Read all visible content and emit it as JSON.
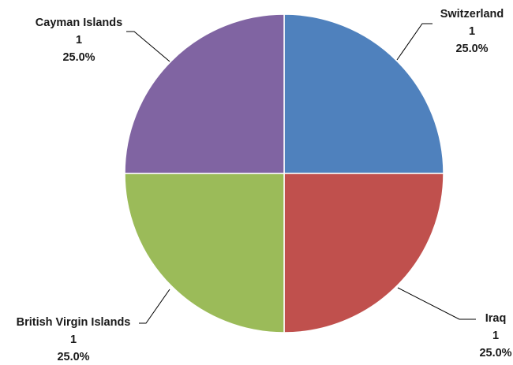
{
  "chart_data": {
    "type": "pie",
    "title": "",
    "slices": [
      {
        "name": "Switzerland",
        "value": 1,
        "percent": "25.0%",
        "color": "#4f81bd"
      },
      {
        "name": "Iraq",
        "value": 1,
        "percent": "25.0%",
        "color": "#c0504d"
      },
      {
        "name": "British Virgin Islands",
        "value": 1,
        "percent": "25.0%",
        "color": "#9bbb59"
      },
      {
        "name": "Cayman Islands",
        "value": 1,
        "percent": "25.0%",
        "color": "#8064a2"
      }
    ],
    "start_angle": "12 o'clock",
    "direction": "clockwise",
    "legend": "none"
  }
}
